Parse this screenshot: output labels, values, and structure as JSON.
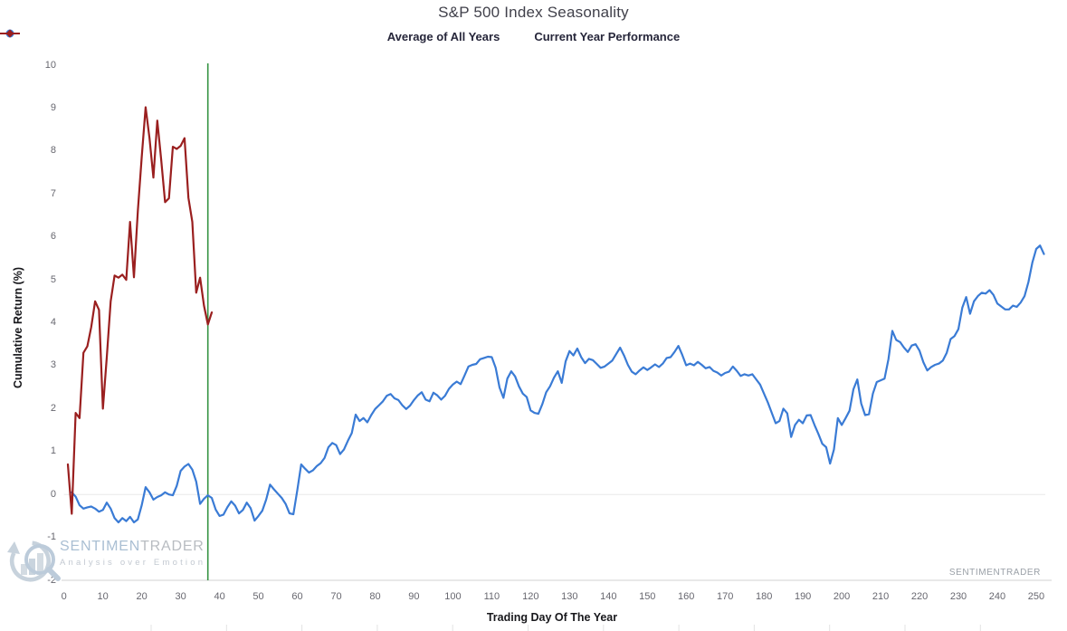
{
  "header": {
    "title": "S&P 500 Index Seasonality"
  },
  "legend": {
    "items": [
      {
        "label": "Average of All Years",
        "color": "#3a7bd5",
        "marker": "circle"
      },
      {
        "label": "Current Year Performance",
        "color": "#9a1f1f",
        "marker": "diamond"
      }
    ]
  },
  "watermark": {
    "brand_part1": "SENTIMEN",
    "brand_part2": "TRADER",
    "tagline": "Analysis over Emotion",
    "corner_text": "SENTIMENTRADER"
  },
  "chart_data": {
    "type": "line",
    "title": "S&P 500 Index Seasonality",
    "xlabel": "Trading Day Of The Year",
    "ylabel": "Cumulative Return (%)",
    "xlim": [
      0,
      253
    ],
    "ylim": [
      -2,
      10
    ],
    "x_ticks": [
      0,
      10,
      20,
      30,
      40,
      50,
      60,
      70,
      80,
      90,
      100,
      110,
      120,
      130,
      140,
      150,
      160,
      170,
      180,
      190,
      200,
      210,
      220,
      230,
      240,
      250
    ],
    "y_ticks": [
      -2,
      -1,
      0,
      1,
      2,
      3,
      4,
      5,
      6,
      7,
      8,
      9,
      10
    ],
    "grid": "zero-line-only",
    "legend_position": "top",
    "vline": {
      "x": 37,
      "color": "#359342"
    },
    "series": [
      {
        "name": "Average of All Years",
        "color": "#3a7bd5",
        "points": [
          [
            2,
            0.05
          ],
          [
            3,
            -0.05
          ],
          [
            4,
            -0.25
          ],
          [
            5,
            -0.33
          ],
          [
            6,
            -0.3
          ],
          [
            7,
            -0.28
          ],
          [
            8,
            -0.33
          ],
          [
            9,
            -0.4
          ],
          [
            10,
            -0.36
          ],
          [
            11,
            -0.19
          ],
          [
            12,
            -0.33
          ],
          [
            13,
            -0.55
          ],
          [
            14,
            -0.65
          ],
          [
            15,
            -0.55
          ],
          [
            16,
            -0.62
          ],
          [
            17,
            -0.52
          ],
          [
            18,
            -0.65
          ],
          [
            19,
            -0.58
          ],
          [
            20,
            -0.25
          ],
          [
            21,
            0.17
          ],
          [
            22,
            0.05
          ],
          [
            23,
            -0.12
          ],
          [
            24,
            -0.06
          ],
          [
            25,
            -0.02
          ],
          [
            26,
            0.05
          ],
          [
            27,
            0
          ],
          [
            28,
            -0.02
          ],
          [
            29,
            0.2
          ],
          [
            30,
            0.55
          ],
          [
            31,
            0.65
          ],
          [
            32,
            0.71
          ],
          [
            33,
            0.58
          ],
          [
            34,
            0.3
          ],
          [
            35,
            -0.22
          ],
          [
            36,
            -0.1
          ],
          [
            37,
            -0.02
          ],
          [
            38,
            -0.08
          ],
          [
            39,
            -0.35
          ],
          [
            40,
            -0.5
          ],
          [
            41,
            -0.47
          ],
          [
            42,
            -0.3
          ],
          [
            43,
            -0.16
          ],
          [
            44,
            -0.26
          ],
          [
            45,
            -0.44
          ],
          [
            46,
            -0.36
          ],
          [
            47,
            -0.19
          ],
          [
            48,
            -0.32
          ],
          [
            49,
            -0.61
          ],
          [
            50,
            -0.5
          ],
          [
            51,
            -0.38
          ],
          [
            52,
            -0.12
          ],
          [
            53,
            0.23
          ],
          [
            54,
            0.12
          ],
          [
            55,
            0.02
          ],
          [
            56,
            -0.08
          ],
          [
            57,
            -0.22
          ],
          [
            58,
            -0.44
          ],
          [
            59,
            -0.46
          ],
          [
            60,
            0.1
          ],
          [
            61,
            0.7
          ],
          [
            62,
            0.6
          ],
          [
            63,
            0.51
          ],
          [
            64,
            0.56
          ],
          [
            65,
            0.66
          ],
          [
            66,
            0.73
          ],
          [
            67,
            0.85
          ],
          [
            68,
            1.1
          ],
          [
            69,
            1.2
          ],
          [
            70,
            1.15
          ],
          [
            71,
            0.94
          ],
          [
            72,
            1.05
          ],
          [
            73,
            1.25
          ],
          [
            74,
            1.43
          ],
          [
            75,
            1.86
          ],
          [
            76,
            1.71
          ],
          [
            77,
            1.78
          ],
          [
            78,
            1.68
          ],
          [
            79,
            1.85
          ],
          [
            80,
            1.99
          ],
          [
            81,
            2.08
          ],
          [
            82,
            2.17
          ],
          [
            83,
            2.3
          ],
          [
            84,
            2.34
          ],
          [
            85,
            2.24
          ],
          [
            86,
            2.2
          ],
          [
            87,
            2.08
          ],
          [
            88,
            1.99
          ],
          [
            89,
            2.07
          ],
          [
            90,
            2.2
          ],
          [
            91,
            2.31
          ],
          [
            92,
            2.38
          ],
          [
            93,
            2.21
          ],
          [
            94,
            2.17
          ],
          [
            95,
            2.37
          ],
          [
            96,
            2.31
          ],
          [
            97,
            2.21
          ],
          [
            98,
            2.3
          ],
          [
            99,
            2.46
          ],
          [
            100,
            2.56
          ],
          [
            101,
            2.63
          ],
          [
            102,
            2.57
          ],
          [
            103,
            2.77
          ],
          [
            104,
            2.98
          ],
          [
            105,
            3.02
          ],
          [
            106,
            3.04
          ],
          [
            107,
            3.15
          ],
          [
            108,
            3.18
          ],
          [
            109,
            3.21
          ],
          [
            110,
            3.2
          ],
          [
            111,
            2.95
          ],
          [
            112,
            2.49
          ],
          [
            113,
            2.25
          ],
          [
            114,
            2.7
          ],
          [
            115,
            2.87
          ],
          [
            116,
            2.75
          ],
          [
            117,
            2.52
          ],
          [
            118,
            2.35
          ],
          [
            119,
            2.27
          ],
          [
            120,
            1.96
          ],
          [
            121,
            1.9
          ],
          [
            122,
            1.88
          ],
          [
            123,
            2.1
          ],
          [
            124,
            2.38
          ],
          [
            125,
            2.52
          ],
          [
            126,
            2.72
          ],
          [
            127,
            2.87
          ],
          [
            128,
            2.6
          ],
          [
            129,
            3.1
          ],
          [
            130,
            3.34
          ],
          [
            131,
            3.24
          ],
          [
            132,
            3.4
          ],
          [
            133,
            3.2
          ],
          [
            134,
            3.06
          ],
          [
            135,
            3.16
          ],
          [
            136,
            3.13
          ],
          [
            137,
            3.04
          ],
          [
            138,
            2.95
          ],
          [
            139,
            2.98
          ],
          [
            140,
            3.05
          ],
          [
            141,
            3.12
          ],
          [
            142,
            3.27
          ],
          [
            143,
            3.42
          ],
          [
            144,
            3.24
          ],
          [
            145,
            3.02
          ],
          [
            146,
            2.86
          ],
          [
            147,
            2.8
          ],
          [
            148,
            2.89
          ],
          [
            149,
            2.96
          ],
          [
            150,
            2.9
          ],
          [
            151,
            2.96
          ],
          [
            152,
            3.03
          ],
          [
            153,
            2.97
          ],
          [
            154,
            3.05
          ],
          [
            155,
            3.18
          ],
          [
            156,
            3.2
          ],
          [
            157,
            3.32
          ],
          [
            158,
            3.46
          ],
          [
            159,
            3.25
          ],
          [
            160,
            3.01
          ],
          [
            161,
            3.05
          ],
          [
            162,
            3.01
          ],
          [
            163,
            3.09
          ],
          [
            164,
            3.02
          ],
          [
            165,
            2.94
          ],
          [
            166,
            2.97
          ],
          [
            167,
            2.88
          ],
          [
            168,
            2.84
          ],
          [
            169,
            2.77
          ],
          [
            170,
            2.83
          ],
          [
            171,
            2.86
          ],
          [
            172,
            2.98
          ],
          [
            173,
            2.88
          ],
          [
            174,
            2.76
          ],
          [
            175,
            2.8
          ],
          [
            176,
            2.77
          ],
          [
            177,
            2.8
          ],
          [
            178,
            2.68
          ],
          [
            179,
            2.56
          ],
          [
            180,
            2.35
          ],
          [
            181,
            2.14
          ],
          [
            182,
            1.9
          ],
          [
            183,
            1.66
          ],
          [
            184,
            1.71
          ],
          [
            185,
            2
          ],
          [
            186,
            1.89
          ],
          [
            187,
            1.34
          ],
          [
            188,
            1.62
          ],
          [
            189,
            1.74
          ],
          [
            190,
            1.66
          ],
          [
            191,
            1.84
          ],
          [
            192,
            1.85
          ],
          [
            193,
            1.62
          ],
          [
            194,
            1.41
          ],
          [
            195,
            1.18
          ],
          [
            196,
            1.1
          ],
          [
            197,
            0.72
          ],
          [
            198,
            1.05
          ],
          [
            199,
            1.78
          ],
          [
            200,
            1.62
          ],
          [
            201,
            1.78
          ],
          [
            202,
            1.95
          ],
          [
            203,
            2.45
          ],
          [
            204,
            2.68
          ],
          [
            205,
            2.12
          ],
          [
            206,
            1.85
          ],
          [
            207,
            1.87
          ],
          [
            208,
            2.35
          ],
          [
            209,
            2.62
          ],
          [
            210,
            2.66
          ],
          [
            211,
            2.7
          ],
          [
            212,
            3.15
          ],
          [
            213,
            3.81
          ],
          [
            214,
            3.6
          ],
          [
            215,
            3.55
          ],
          [
            216,
            3.42
          ],
          [
            217,
            3.32
          ],
          [
            218,
            3.47
          ],
          [
            219,
            3.5
          ],
          [
            220,
            3.35
          ],
          [
            221,
            3.08
          ],
          [
            222,
            2.89
          ],
          [
            223,
            2.97
          ],
          [
            224,
            3.02
          ],
          [
            225,
            3.05
          ],
          [
            226,
            3.12
          ],
          [
            227,
            3.3
          ],
          [
            228,
            3.62
          ],
          [
            229,
            3.69
          ],
          [
            230,
            3.85
          ],
          [
            231,
            4.35
          ],
          [
            232,
            4.6
          ],
          [
            233,
            4.21
          ],
          [
            234,
            4.5
          ],
          [
            235,
            4.62
          ],
          [
            236,
            4.7
          ],
          [
            237,
            4.68
          ],
          [
            238,
            4.76
          ],
          [
            239,
            4.65
          ],
          [
            240,
            4.45
          ],
          [
            241,
            4.38
          ],
          [
            242,
            4.31
          ],
          [
            243,
            4.31
          ],
          [
            244,
            4.4
          ],
          [
            245,
            4.37
          ],
          [
            246,
            4.47
          ],
          [
            247,
            4.62
          ],
          [
            248,
            4.95
          ],
          [
            249,
            5.4
          ],
          [
            250,
            5.72
          ],
          [
            251,
            5.8
          ],
          [
            252,
            5.6
          ]
        ]
      },
      {
        "name": "Current Year Performance",
        "color": "#9a1f1f",
        "points": [
          [
            1,
            0.7
          ],
          [
            2,
            -0.45
          ],
          [
            3,
            1.9
          ],
          [
            4,
            1.78
          ],
          [
            5,
            3.3
          ],
          [
            6,
            3.45
          ],
          [
            7,
            3.9
          ],
          [
            8,
            4.5
          ],
          [
            9,
            4.3
          ],
          [
            10,
            2
          ],
          [
            11,
            3.2
          ],
          [
            12,
            4.5
          ],
          [
            13,
            5.1
          ],
          [
            14,
            5.05
          ],
          [
            15,
            5.12
          ],
          [
            16,
            5
          ],
          [
            17,
            6.35
          ],
          [
            18,
            5.06
          ],
          [
            19,
            6.6
          ],
          [
            20,
            7.86
          ],
          [
            21,
            9.02
          ],
          [
            22,
            8.3
          ],
          [
            23,
            7.38
          ],
          [
            24,
            8.71
          ],
          [
            25,
            7.8
          ],
          [
            26,
            6.81
          ],
          [
            27,
            6.9
          ],
          [
            28,
            8.1
          ],
          [
            29,
            8.05
          ],
          [
            30,
            8.12
          ],
          [
            31,
            8.3
          ],
          [
            32,
            6.91
          ],
          [
            33,
            6.35
          ],
          [
            34,
            4.7
          ],
          [
            35,
            5.05
          ],
          [
            36,
            4.4
          ],
          [
            37,
            3.96
          ],
          [
            38,
            4.24
          ]
        ]
      }
    ]
  }
}
